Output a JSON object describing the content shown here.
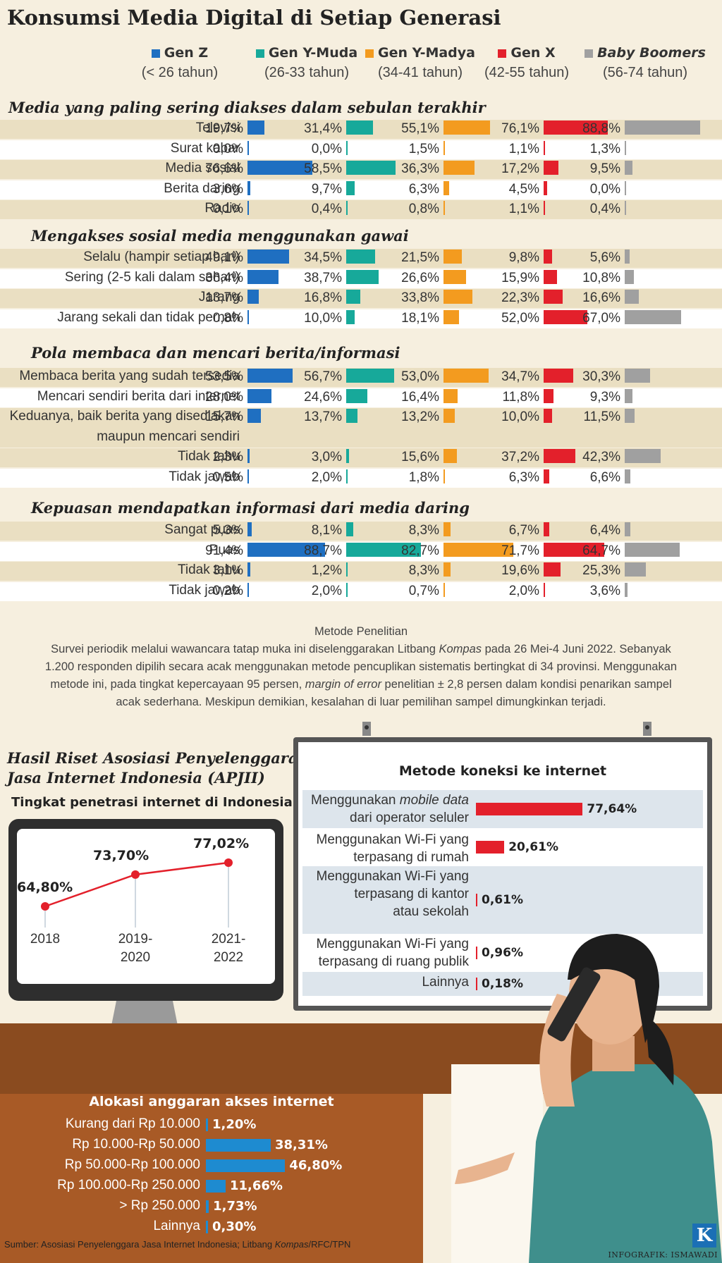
{
  "title": "Konsumsi Media Digital di Setiap Generasi",
  "colors": {
    "genz": "#1f6fc1",
    "geny_muda": "#17a99a",
    "geny_madya": "#f39b1f",
    "genx": "#e3202b",
    "boomers": "#a0a0a0"
  },
  "legend": [
    {
      "name": "Gen Z",
      "age": "(< 26 tahun)",
      "color": "#1f6fc1",
      "italic": false
    },
    {
      "name": "Gen Y-Muda",
      "age": "(26-33 tahun)",
      "color": "#17a99a",
      "italic": false
    },
    {
      "name": "Gen Y-Madya",
      "age": "(34-41 tahun)",
      "color": "#f39b1f",
      "italic": false
    },
    {
      "name": "Gen X",
      "age": "(42-55 tahun)",
      "color": "#e3202b",
      "italic": false
    },
    {
      "name": "Baby Boomers",
      "age": "(56-74 tahun)",
      "color": "#a0a0a0",
      "italic": true
    }
  ],
  "chart_data": [
    {
      "type": "bar",
      "title": "Media yang paling sering diakses dalam sebulan terakhir",
      "series_names": [
        "Gen Z",
        "Gen Y-Muda",
        "Gen Y-Madya",
        "Gen X",
        "Baby Boomers"
      ],
      "rows": [
        {
          "label": "Televisi",
          "values": [
            19.7,
            31.4,
            55.1,
            76.1,
            88.8
          ],
          "text": [
            "19,7%",
            "31,4%",
            "55,1%",
            "76,1%",
            "88,8%"
          ]
        },
        {
          "label": "Surat kabar",
          "values": [
            0.0,
            0.0,
            1.5,
            1.1,
            1.3
          ],
          "text": [
            "0,0%",
            "0,0%",
            "1,5%",
            "1,1%",
            "1,3%"
          ]
        },
        {
          "label": "Media sosial",
          "values": [
            76.6,
            58.5,
            36.3,
            17.2,
            9.5
          ],
          "text": [
            "76,6%",
            "58,5%",
            "36,3%",
            "17,2%",
            "9,5%"
          ]
        },
        {
          "label": "Berita daring",
          "values": [
            3.6,
            9.7,
            6.3,
            4.5,
            0.0
          ],
          "text": [
            "3,6%",
            "9,7%",
            "6,3%",
            "4,5%",
            "0,0%"
          ]
        },
        {
          "label": "Radio",
          "values": [
            0.1,
            0.4,
            0.8,
            1.1,
            0.4
          ],
          "text": [
            "0,1%",
            "0,4%",
            "0,8%",
            "1,1%",
            "0,4%"
          ]
        }
      ]
    },
    {
      "type": "bar",
      "title": "Mengakses sosial media menggunakan gawai",
      "series_names": [
        "Gen Z",
        "Gen Y-Muda",
        "Gen Y-Madya",
        "Gen X",
        "Baby Boomers"
      ],
      "rows": [
        {
          "label": "Selalu (hampir setiap hari)",
          "values": [
            49.1,
            34.5,
            21.5,
            9.8,
            5.6
          ],
          "text": [
            "49,1%",
            "34,5%",
            "21,5%",
            "9,8%",
            "5,6%"
          ]
        },
        {
          "label": "Sering (2-5 kali dalam sehari)",
          "values": [
            36.4,
            38.7,
            26.6,
            15.9,
            10.8
          ],
          "text": [
            "36,4%",
            "38,7%",
            "26,6%",
            "15,9%",
            "10,8%"
          ]
        },
        {
          "label": "Jarang",
          "values": [
            13.7,
            16.8,
            33.8,
            22.3,
            16.6
          ],
          "text": [
            "13,7%",
            "16,8%",
            "33,8%",
            "22,3%",
            "16,6%"
          ]
        },
        {
          "label": "Jarang sekali dan tidak pernah",
          "values": [
            0.8,
            10.0,
            18.1,
            52.0,
            67.0
          ],
          "text": [
            "0,8%",
            "10,0%",
            "18,1%",
            "52,0%",
            "67,0%"
          ]
        }
      ]
    },
    {
      "type": "bar",
      "title": "Pola membaca dan mencari berita/informasi",
      "series_names": [
        "Gen Z",
        "Gen Y-Muda",
        "Gen Y-Madya",
        "Gen X",
        "Baby Boomers"
      ],
      "rows": [
        {
          "label": "Membaca berita yang sudah tersedia",
          "values": [
            53.5,
            56.7,
            53.0,
            34.7,
            30.3
          ],
          "text": [
            "53,5%",
            "56,7%",
            "53,0%",
            "34,7%",
            "30,3%"
          ]
        },
        {
          "label": "Mencari sendiri berita dari internet",
          "values": [
            28.0,
            24.6,
            16.4,
            11.8,
            9.3
          ],
          "text": [
            "28,0%",
            "24,6%",
            "16,4%",
            "11,8%",
            "9,3%"
          ]
        },
        {
          "label": "Keduanya, baik berita yang disediakan",
          "label2": "maupun mencari sendiri",
          "values": [
            15.7,
            13.7,
            13.2,
            10.0,
            11.5
          ],
          "text": [
            "15,7%",
            "13,7%",
            "13,2%",
            "10,0%",
            "11,5%"
          ]
        },
        {
          "label": "Tidak tahu",
          "values": [
            2.3,
            3.0,
            15.6,
            37.2,
            42.3
          ],
          "text": [
            "2,3%",
            "3,0%",
            "15,6%",
            "37,2%",
            "42,3%"
          ]
        },
        {
          "label": "Tidak jawab",
          "values": [
            0.5,
            2.0,
            1.8,
            6.3,
            6.6
          ],
          "text": [
            "0,5%",
            "2,0%",
            "1,8%",
            "6,3%",
            "6,6%"
          ]
        }
      ]
    },
    {
      "type": "bar",
      "title": "Kepuasan mendapatkan informasi dari media daring",
      "series_names": [
        "Gen Z",
        "Gen Y-Muda",
        "Gen Y-Madya",
        "Gen X",
        "Baby Boomers"
      ],
      "rows": [
        {
          "label": "Sangat puas",
          "values": [
            5.3,
            8.1,
            8.3,
            6.7,
            6.4
          ],
          "text": [
            "5,3%",
            "8,1%",
            "8,3%",
            "6,7%",
            "6,4%"
          ]
        },
        {
          "label": "Puas",
          "values": [
            91.4,
            88.7,
            82.7,
            71.7,
            64.7
          ],
          "text": [
            "91,4%",
            "88,7%",
            "82,7%",
            "71,7%",
            "64,7%"
          ]
        },
        {
          "label": "Tidak tahu",
          "values": [
            3.1,
            1.2,
            8.3,
            19.6,
            25.3
          ],
          "text": [
            "3,1%",
            "1,2%",
            "8,3%",
            "19,6%",
            "25,3%"
          ]
        },
        {
          "label": "Tidak jawab",
          "values": [
            0.2,
            2.0,
            0.7,
            2.0,
            3.6
          ],
          "text": [
            "0,2%",
            "2,0%",
            "0,7%",
            "2,0%",
            "3,6%"
          ]
        }
      ]
    },
    {
      "type": "line",
      "title": "Tingkat penetrasi internet di Indonesia",
      "x": [
        "2018",
        "2019-2020",
        "2021-2022"
      ],
      "x_lines": [
        [
          "2018"
        ],
        [
          "2019-",
          "2020"
        ],
        [
          "2021-",
          "2022"
        ]
      ],
      "values": [
        64.8,
        73.7,
        77.02
      ],
      "text": [
        "64,80%",
        "73,70%",
        "77,02%"
      ]
    },
    {
      "type": "bar",
      "title": "Metode koneksi ke internet",
      "categories": [
        "Menggunakan mobile data dari operator seluler",
        "Menggunakan Wi-Fi yang terpasang di rumah",
        "Menggunakan Wi-Fi yang terpasang di kantor atau sekolah",
        "Menggunakan Wi-Fi yang terpasang di ruang publik",
        "Lainnya"
      ],
      "values": [
        77.64,
        20.61,
        0.61,
        0.96,
        0.18
      ],
      "text": [
        "77,64%",
        "20,61%",
        "0,61%",
        "0,96%",
        "0,18%"
      ]
    },
    {
      "type": "bar",
      "title": "Alokasi anggaran akses internet",
      "categories": [
        "Kurang dari Rp 10.000",
        "Rp 10.000-Rp 50.000",
        "Rp 50.000-Rp 100.000",
        "Rp 100.000-Rp 250.000",
        "> Rp 250.000",
        "Lainnya"
      ],
      "values": [
        1.2,
        38.31,
        46.8,
        11.66,
        1.73,
        0.3
      ],
      "text": [
        "1,20%",
        "38,31%",
        "46,80%",
        "11,66%",
        "1,73%",
        "0,30%"
      ]
    }
  ],
  "metode": {
    "heading": "Metode Penelitian",
    "line1_a": "Survei periodik melalui wawancara tatap muka ini diselenggarakan Litbang ",
    "line1_i": "Kompas",
    "line1_b": " pada 26 Mei-4 Juni 2022. Sebanyak",
    "line2": "1.200 responden dipilih secara acak menggunakan metode pencuplikan sistematis bertingkat di 34 provinsi. Menggunakan",
    "line3_a": "metode ini, pada tingkat kepercayaan 95 persen, ",
    "line3_i": "margin of error",
    "line3_b": " penelitian ± 2,8 persen dalam kondisi penarikan sampel",
    "line4": "acak sederhana. Meskipun demikian, kesalahan di luar pemilihan sampel dimungkinkan terjadi."
  },
  "apjii": {
    "line1": "Hasil Riset Asosiasi Penyelenggara",
    "line2": "Jasa Internet Indonesia (APJII)"
  },
  "conn_labels": [
    [
      "Menggunakan ",
      "mobile data",
      " ",
      "dari operator seluler"
    ],
    [
      "Menggunakan Wi-Fi yang",
      "terpasang di rumah"
    ],
    [
      "Menggunakan Wi-Fi yang",
      "terpasang di kantor",
      "atau sekolah"
    ],
    [
      "Menggunakan Wi-Fi yang",
      "terpasang di ruang publik"
    ],
    [
      "Lainnya"
    ]
  ],
  "source": {
    "a": "Sumber: Asosiasi Penyelenggara Jasa Internet Indonesia; Litbang ",
    "i": "Kompas",
    "b": "/RFC/TPN"
  },
  "credit": "INFOGRAFIK: ISMAWADI",
  "logo": "K"
}
